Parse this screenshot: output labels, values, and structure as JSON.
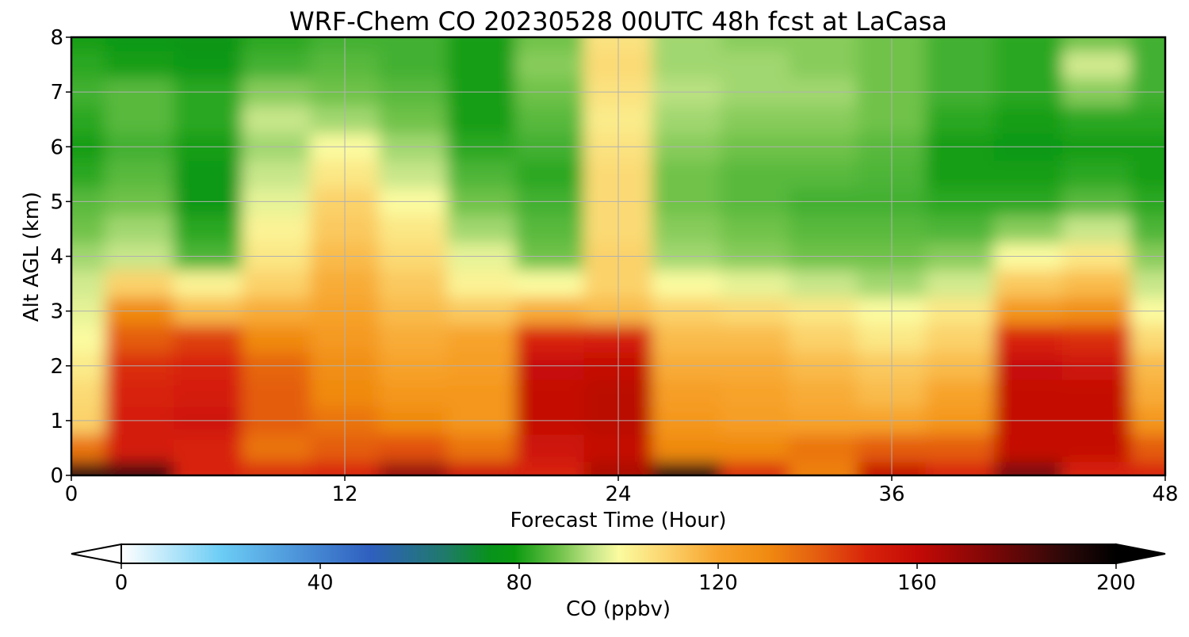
{
  "chart_data": {
    "type": "heatmap",
    "title": "WRF-Chem CO  20230528 00UTC 48h fcst at LaCasa",
    "xlabel": "Forecast Time (Hour)",
    "ylabel": "Alt AGL (km)",
    "xlim": [
      0,
      48
    ],
    "ylim": [
      0,
      8
    ],
    "x_ticks": [
      0,
      12,
      24,
      36,
      48
    ],
    "y_ticks": [
      0,
      1,
      2,
      3,
      4,
      5,
      6,
      7,
      8
    ],
    "grid": true,
    "x_grid_hours": [
      0,
      3,
      6,
      9,
      12,
      15,
      18,
      21,
      24,
      27,
      30,
      33,
      36,
      39,
      42,
      45,
      48
    ],
    "y_grid_km": [
      0,
      0.5,
      1,
      1.5,
      2,
      2.5,
      3,
      3.5,
      4,
      4.5,
      5,
      5.5,
      6,
      6.5,
      7,
      7.5,
      8
    ],
    "z_values_ppbv": [
      [
        190,
        185,
        150,
        148,
        150,
        170,
        155,
        150,
        165,
        190,
        148,
        132,
        160,
        150,
        175,
        150,
        150
      ],
      [
        135,
        152,
        150,
        135,
        140,
        142,
        135,
        155,
        160,
        130,
        130,
        135,
        140,
        140,
        160,
        160,
        140
      ],
      [
        110,
        152,
        155,
        140,
        135,
        130,
        125,
        160,
        162,
        125,
        122,
        120,
        120,
        125,
        160,
        160,
        125
      ],
      [
        108,
        150,
        152,
        140,
        130,
        125,
        125,
        160,
        162,
        122,
        120,
        118,
        115,
        120,
        160,
        160,
        118
      ],
      [
        104,
        148,
        150,
        138,
        128,
        120,
        122,
        158,
        160,
        118,
        118,
        115,
        112,
        115,
        158,
        155,
        115
      ],
      [
        100,
        140,
        145,
        130,
        124,
        118,
        120,
        150,
        152,
        115,
        115,
        110,
        105,
        110,
        150,
        148,
        108
      ],
      [
        98,
        130,
        115,
        118,
        120,
        115,
        112,
        118,
        115,
        110,
        108,
        105,
        100,
        105,
        125,
        128,
        100
      ],
      [
        96,
        110,
        102,
        110,
        118,
        112,
        102,
        100,
        110,
        100,
        98,
        95,
        92,
        96,
        112,
        115,
        95
      ],
      [
        92,
        95,
        85,
        105,
        115,
        108,
        98,
        88,
        110,
        92,
        90,
        88,
        88,
        90,
        100,
        105,
        90
      ],
      [
        88,
        92,
        82,
        102,
        112,
        105,
        92,
        86,
        108,
        90,
        88,
        86,
        86,
        85,
        90,
        95,
        85
      ],
      [
        86,
        88,
        78,
        98,
        110,
        100,
        88,
        84,
        108,
        88,
        86,
        84,
        84,
        82,
        82,
        86,
        82
      ],
      [
        82,
        86,
        78,
        95,
        105,
        95,
        85,
        82,
        108,
        88,
        86,
        86,
        85,
        80,
        80,
        82,
        80
      ],
      [
        80,
        84,
        80,
        92,
        100,
        92,
        82,
        84,
        106,
        90,
        88,
        88,
        86,
        80,
        78,
        80,
        80
      ],
      [
        82,
        86,
        82,
        95,
        92,
        88,
        80,
        86,
        104,
        92,
        90,
        90,
        88,
        82,
        80,
        82,
        82
      ],
      [
        84,
        86,
        82,
        90,
        88,
        86,
        80,
        88,
        106,
        94,
        92,
        92,
        88,
        84,
        82,
        90,
        84
      ],
      [
        82,
        80,
        78,
        84,
        86,
        84,
        80,
        90,
        108,
        92,
        92,
        90,
        88,
        84,
        82,
        96,
        84
      ],
      [
        80,
        78,
        76,
        82,
        84,
        84,
        80,
        88,
        106,
        92,
        90,
        90,
        88,
        84,
        82,
        88,
        84
      ]
    ],
    "colorbar": {
      "label": "CO  (ppbv)",
      "min": 0,
      "max": 200,
      "ticks": [
        0,
        40,
        80,
        120,
        160,
        200
      ],
      "extend": "both",
      "stops": [
        {
          "v": 0,
          "c": "#ffffff"
        },
        {
          "v": 20,
          "c": "#6ccdf5"
        },
        {
          "v": 50,
          "c": "#2f5fbf"
        },
        {
          "v": 65,
          "c": "#1f7a6a"
        },
        {
          "v": 74,
          "c": "#08921c"
        },
        {
          "v": 79,
          "c": "#0a9a10"
        },
        {
          "v": 88,
          "c": "#6fc24a"
        },
        {
          "v": 95,
          "c": "#c7e68a"
        },
        {
          "v": 100,
          "c": "#fbfba0"
        },
        {
          "v": 110,
          "c": "#fbd26a"
        },
        {
          "v": 120,
          "c": "#f7a32c"
        },
        {
          "v": 130,
          "c": "#f08a10"
        },
        {
          "v": 140,
          "c": "#e45d10"
        },
        {
          "v": 150,
          "c": "#d8230a"
        },
        {
          "v": 160,
          "c": "#c40a06"
        },
        {
          "v": 175,
          "c": "#7c0707"
        },
        {
          "v": 190,
          "c": "#2a0808"
        },
        {
          "v": 200,
          "c": "#000000"
        }
      ]
    },
    "colors": {
      "grid": "#b0b0b0",
      "axes": "#000000"
    }
  }
}
